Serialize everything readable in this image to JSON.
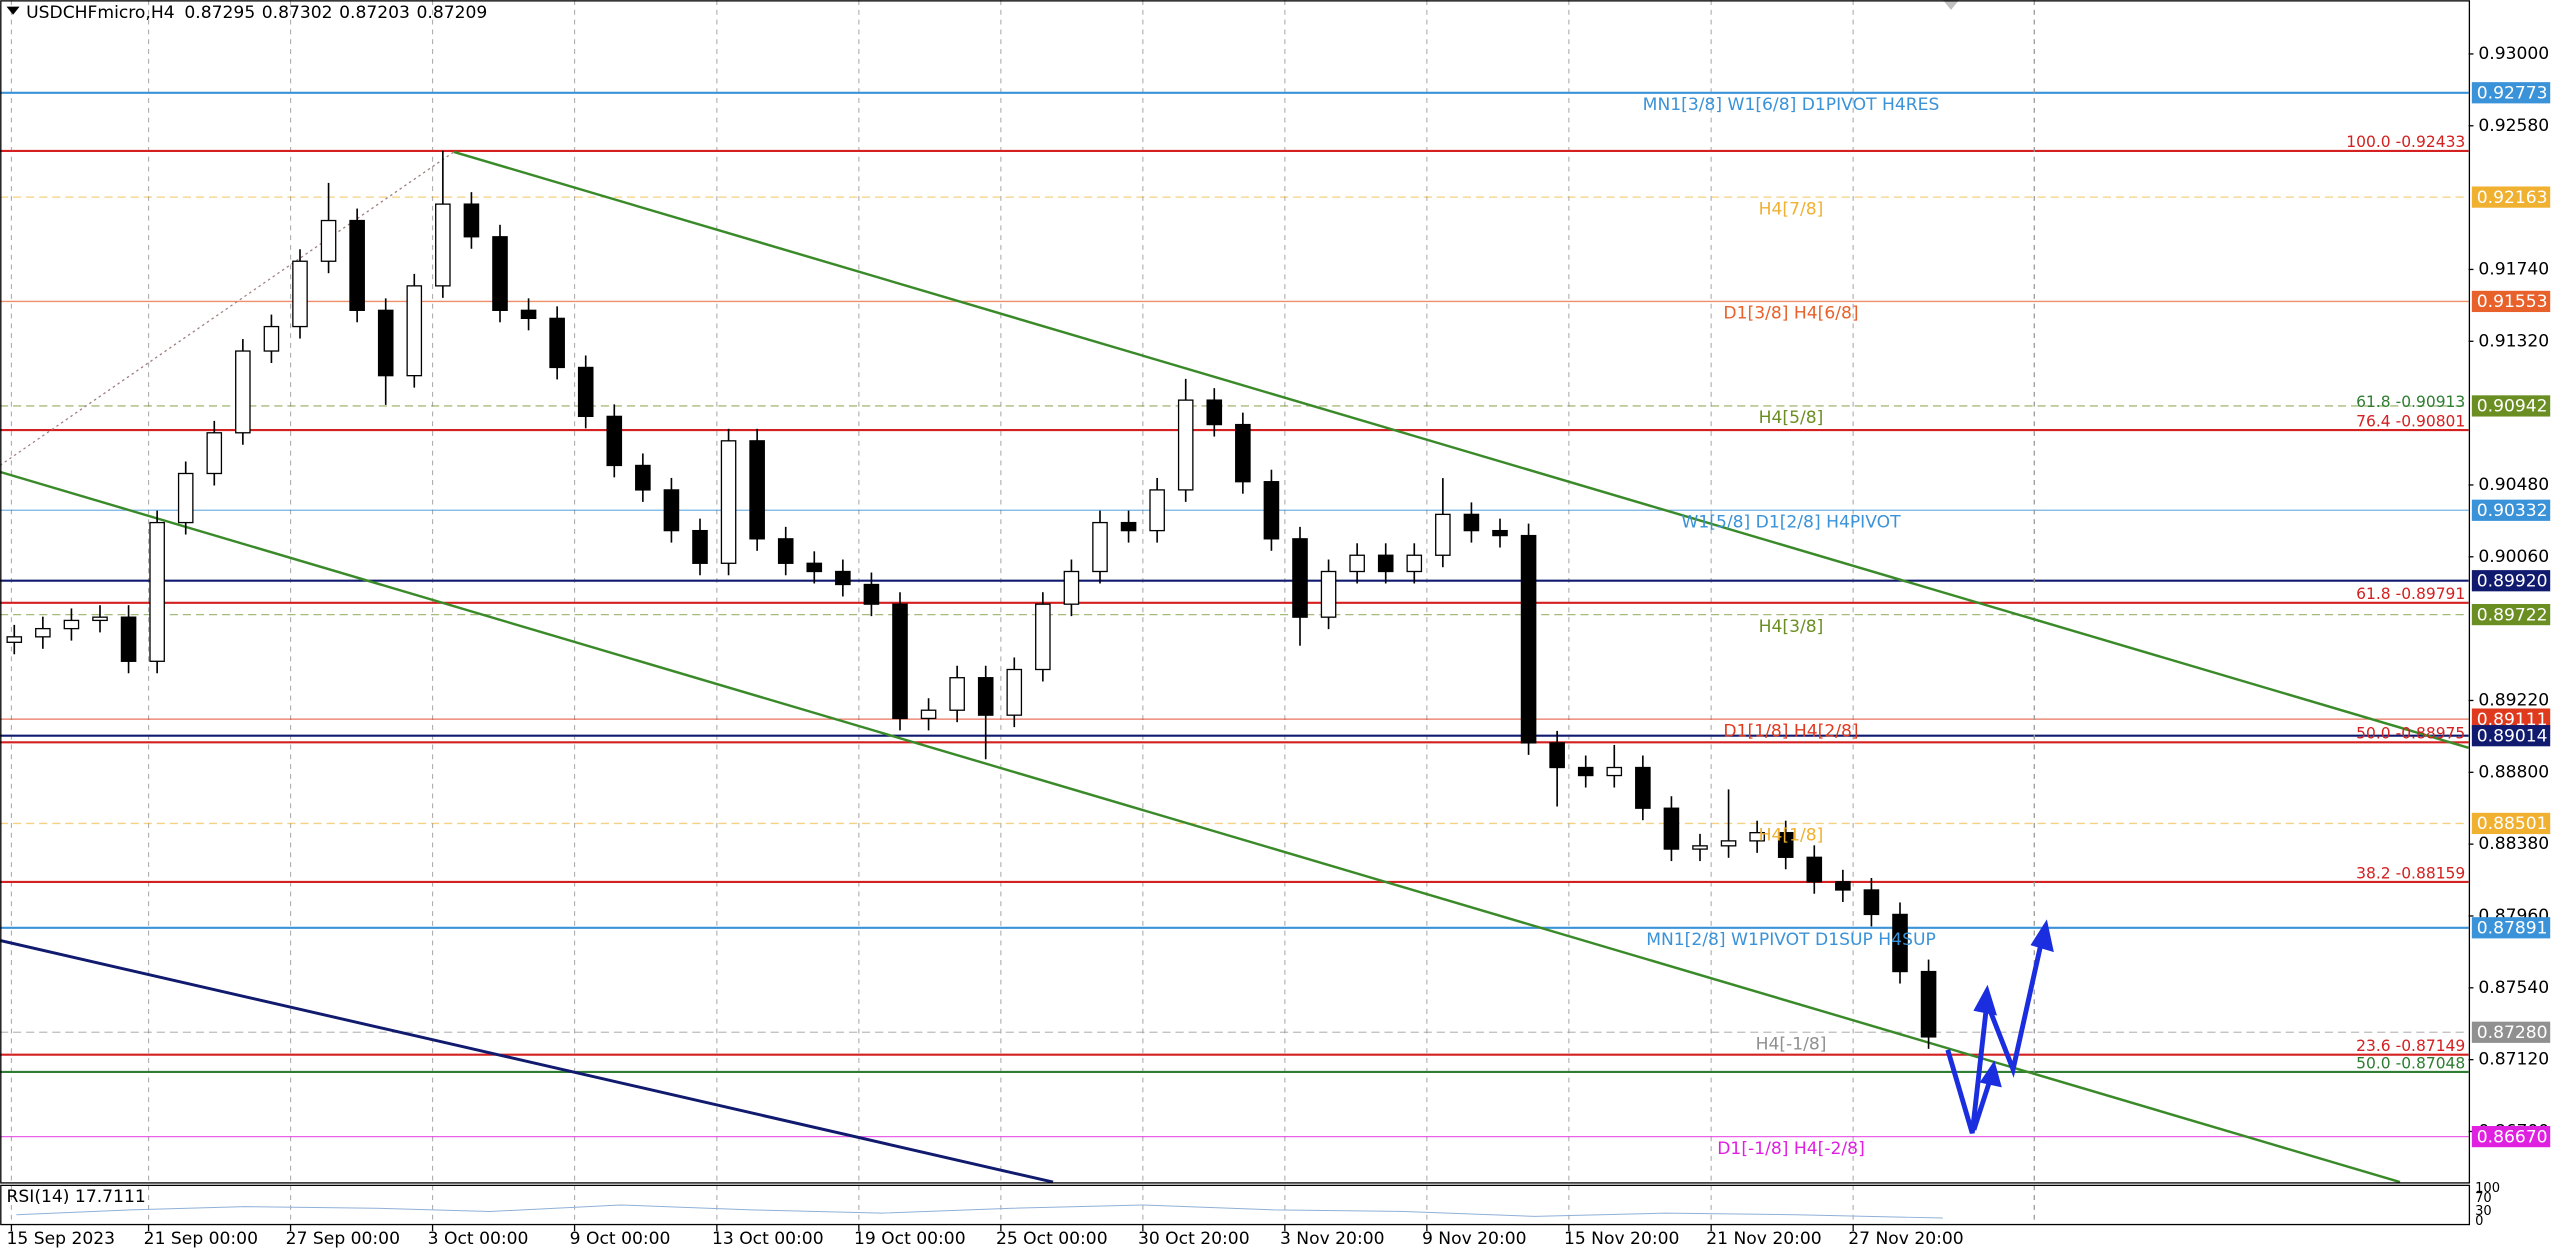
{
  "chart_data": {
    "type": "candlestick",
    "symbol": "USDCHFmicro,H4",
    "header_ohlc": [
      0.87295,
      0.87302,
      0.87203,
      0.87209
    ],
    "ylim": [
      0.86404,
      0.93315
    ],
    "yticks": [
      {
        "value": 0.93,
        "label": "0.93000"
      },
      {
        "value": 0.9258,
        "label": "0.92580"
      },
      {
        "value": 0.9174,
        "label": "0.91740"
      },
      {
        "value": 0.9132,
        "label": "0.91320"
      },
      {
        "value": 0.9048,
        "label": "0.90480"
      },
      {
        "value": 0.9006,
        "label": "0.90060"
      },
      {
        "value": 0.8922,
        "label": "0.89220"
      },
      {
        "value": 0.888,
        "label": "0.88800"
      },
      {
        "value": 0.8838,
        "label": "0.88380"
      },
      {
        "value": 0.8796,
        "label": "0.87960"
      },
      {
        "value": 0.8754,
        "label": "0.87540"
      },
      {
        "value": 0.8712,
        "label": "0.87120"
      },
      {
        "value": 0.867,
        "label": "0.86700"
      }
    ],
    "xlim": [
      0,
      86.4
    ],
    "xticks": [
      {
        "value": 0.4,
        "label": "15 Sep 2023"
      },
      {
        "value": 5.2,
        "label": "21 Sep 00:00"
      },
      {
        "value": 10.17,
        "label": "27 Sep 00:00"
      },
      {
        "value": 15.14,
        "label": "3 Oct 00:00"
      },
      {
        "value": 20.11,
        "label": "9 Oct 00:00"
      },
      {
        "value": 25.09,
        "label": "13 Oct 00:00"
      },
      {
        "value": 30.06,
        "label": "19 Oct 00:00"
      },
      {
        "value": 35.03,
        "label": "25 Oct 00:00"
      },
      {
        "value": 40,
        "label": "30 Oct 20:00"
      },
      {
        "value": 44.97,
        "label": "3 Nov 20:00"
      },
      {
        "value": 49.94,
        "label": "9 Nov 20:00"
      },
      {
        "value": 54.91,
        "label": "15 Nov 20:00"
      },
      {
        "value": 59.89,
        "label": "21 Nov 20:00"
      },
      {
        "value": 64.86,
        "label": "27 Nov 20:00"
      }
    ],
    "grid": true,
    "up_color": "#ffffff",
    "down_color": "#000000",
    "wick_color": "#000000",
    "open": [
      0.8956,
      0.89592,
      0.8964,
      0.89688,
      0.89707,
      0.89449,
      0.9026,
      0.90547,
      0.90785,
      0.91263,
      0.91406,
      0.91788,
      0.92026,
      0.91501,
      0.91119,
      0.91644,
      0.92122,
      0.91931,
      0.91501,
      0.91454,
      0.91167,
      0.90881,
      0.90594,
      0.90451,
      0.90213,
      0.90022,
      0.90738,
      0.90165,
      0.90022,
      0.89974,
      0.89898,
      0.89783,
      0.89115,
      0.89163,
      0.89353,
      0.89134,
      0.89401,
      0.89783,
      0.89974,
      0.9026,
      0.90213,
      0.90451,
      0.90976,
      0.90833,
      0.90499,
      0.90165,
      0.89707,
      0.89974,
      0.90069,
      0.89974,
      0.90069,
      0.90308,
      0.90213,
      0.90184,
      0.88972,
      0.88828,
      0.88781,
      0.88828,
      0.8859,
      0.88351,
      0.8837,
      0.88399,
      0.88447,
      0.88303,
      0.8816,
      0.88112,
      0.87969,
      0.87635
    ],
    "high": [
      0.89662,
      0.8971,
      0.89758,
      0.89777,
      0.89777,
      0.9033,
      0.90617,
      0.90855,
      0.91333,
      0.91476,
      0.91858,
      0.92246,
      0.92096,
      0.91571,
      0.91714,
      0.92433,
      0.92192,
      0.92001,
      0.91571,
      0.91524,
      0.91237,
      0.90951,
      0.90664,
      0.90521,
      0.90283,
      0.90808,
      0.90808,
      0.90235,
      0.90092,
      0.90044,
      0.89968,
      0.89853,
      0.89233,
      0.89423,
      0.89423,
      0.89471,
      0.89853,
      0.90044,
      0.9033,
      0.9033,
      0.90521,
      0.911,
      0.91046,
      0.90903,
      0.90569,
      0.90235,
      0.90044,
      0.90139,
      0.90139,
      0.90139,
      0.9052,
      0.90378,
      0.90283,
      0.90254,
      0.89042,
      0.88898,
      0.8896,
      0.88898,
      0.8866,
      0.8844,
      0.887,
      0.88517,
      0.88517,
      0.88373,
      0.8823,
      0.88182,
      0.88039,
      0.87705
    ],
    "low": [
      0.8949,
      0.89522,
      0.8957,
      0.89618,
      0.89379,
      0.89379,
      0.9019,
      0.90477,
      0.90715,
      0.91193,
      0.91336,
      0.91718,
      0.91431,
      0.90948,
      0.91049,
      0.91574,
      0.91861,
      0.91431,
      0.91384,
      0.91097,
      0.90811,
      0.90524,
      0.90381,
      0.90143,
      0.89952,
      0.89952,
      0.90095,
      0.89952,
      0.89904,
      0.89828,
      0.89713,
      0.89045,
      0.89045,
      0.89093,
      0.88876,
      0.89064,
      0.89331,
      0.89713,
      0.89904,
      0.90143,
      0.90143,
      0.90381,
      0.90763,
      0.90429,
      0.90095,
      0.8954,
      0.89637,
      0.89904,
      0.89904,
      0.89904,
      0.89999,
      0.90143,
      0.90114,
      0.88902,
      0.886,
      0.88711,
      0.88711,
      0.8852,
      0.88281,
      0.88281,
      0.883,
      0.88329,
      0.88233,
      0.8809,
      0.88042,
      0.87899,
      0.87565,
      0.87183
    ],
    "close": [
      0.89592,
      0.8964,
      0.89688,
      0.89707,
      0.89449,
      0.9026,
      0.90547,
      0.90785,
      0.91263,
      0.91406,
      0.91788,
      0.92026,
      0.91501,
      0.91119,
      0.91644,
      0.92122,
      0.91931,
      0.91501,
      0.91454,
      0.91167,
      0.90881,
      0.90594,
      0.90451,
      0.90213,
      0.90022,
      0.90738,
      0.90165,
      0.90022,
      0.89974,
      0.89898,
      0.89783,
      0.89115,
      0.89163,
      0.89353,
      0.89134,
      0.89401,
      0.89783,
      0.89974,
      0.9026,
      0.90213,
      0.90451,
      0.90976,
      0.90833,
      0.90499,
      0.90165,
      0.89707,
      0.89974,
      0.90069,
      0.89974,
      0.90069,
      0.90308,
      0.90213,
      0.90184,
      0.88972,
      0.88828,
      0.88781,
      0.88828,
      0.8859,
      0.88351,
      0.8837,
      0.88399,
      0.88447,
      0.88303,
      0.8816,
      0.88112,
      0.87969,
      0.87635,
      0.87253
    ],
    "levels": [
      {
        "price": 0.92773,
        "color": "#3a92d8",
        "line": "solid",
        "label": "MN1[3/8] W1[6/8] D1PIVOT H4RES",
        "box": true
      },
      {
        "price": 0.92433,
        "color": "#d42020",
        "line": "solid",
        "fib": "100.0 -0.92433"
      },
      {
        "price": 0.92163,
        "color": "#f0b030",
        "line": "dash",
        "label": "H4[7/8]",
        "box": true
      },
      {
        "price": 0.91553,
        "color": "#e8602a",
        "line": "thin",
        "label": "D1[3/8] H4[6/8]",
        "box": true
      },
      {
        "price": 0.90942,
        "color": "#6b8e23",
        "line": "dash",
        "label": "H4[5/8]",
        "box": true
      },
      {
        "price": 0.90913,
        "color": "#2e7d32",
        "line": "none",
        "fib": "61.8 -0.90913"
      },
      {
        "price": 0.90801,
        "color": "#d42020",
        "line": "solid",
        "fib": "76.4 -0.90801"
      },
      {
        "price": 0.90332,
        "color": "#3a92d8",
        "line": "thin",
        "label": "W1[5/8] D1[2/8] H4PIVOT",
        "box": true
      },
      {
        "price": 0.8992,
        "price_label": "0.89920",
        "color": "#101a6e",
        "line": "solid",
        "box": true
      },
      {
        "price": 0.89791,
        "color": "#d42020",
        "line": "solid",
        "fib": "61.8 -0.89791"
      },
      {
        "price": 0.89722,
        "color": "#6b8e23",
        "line": "dash",
        "label": "H4[3/8]",
        "box": true
      },
      {
        "price": 0.89111,
        "color": "#e03a1e",
        "line": "thin",
        "label": "D1[1/8] H4[2/8]",
        "box": true
      },
      {
        "price": 0.89014,
        "color": "#101a6e",
        "line": "solid",
        "box": true
      },
      {
        "price": 0.88975,
        "color": "#d42020",
        "line": "solid",
        "fib": "50.0 -0.88975"
      },
      {
        "price": 0.88501,
        "color": "#f0b030",
        "line": "dash",
        "label": "H4[1/8]",
        "box": true
      },
      {
        "price": 0.88159,
        "color": "#d42020",
        "line": "solid",
        "fib": "38.2 -0.88159"
      },
      {
        "price": 0.87891,
        "color": "#3a92d8",
        "line": "solid",
        "label": "MN1[2/8] W1PIVOT D1SUP H4SUP",
        "box": true
      },
      {
        "price": 0.8728,
        "price_label": "0.87280",
        "color": "#909090",
        "line": "dash",
        "label": "H4[-1/8]",
        "box": true
      },
      {
        "price": 0.87149,
        "color": "#d42020",
        "line": "solid",
        "fib": "23.6 -0.87149"
      },
      {
        "price": 0.87048,
        "color": "#2e7d32",
        "line": "solid",
        "fib": "50.0 -0.87048"
      },
      {
        "price": 0.8667,
        "price_label": "0.86670",
        "color": "#e020e0",
        "line": "thin",
        "label": "D1[-1/8] H4[-2/8]",
        "box": true
      }
    ],
    "rsi_label": "RSI(14) 17.7111",
    "rsi_ticks": [
      100,
      70,
      30,
      0
    ]
  }
}
